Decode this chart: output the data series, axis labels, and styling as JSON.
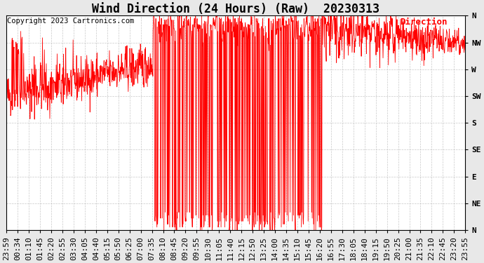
{
  "title": "Wind Direction (24 Hours) (Raw)  20230313",
  "copyright": "Copyright 2023 Cartronics.com",
  "legend_label": "Direction",
  "legend_color": "#ff0000",
  "line_color": "#ff0000",
  "bg_color": "#e8e8e8",
  "plot_bg_color": "#ffffff",
  "grid_color": "#bbbbbb",
  "ytick_labels": [
    "N",
    "NW",
    "W",
    "SW",
    "S",
    "SE",
    "E",
    "NE",
    "N"
  ],
  "ytick_values": [
    360,
    315,
    270,
    225,
    180,
    135,
    90,
    45,
    0
  ],
  "ylim": [
    0,
    360
  ],
  "title_fontsize": 12,
  "copyright_fontsize": 7.5,
  "tick_label_fontsize": 8,
  "n_points": 1440,
  "xtick_labels": [
    "23:59",
    "00:34",
    "01:10",
    "01:45",
    "02:20",
    "02:55",
    "03:30",
    "04:05",
    "04:40",
    "05:15",
    "05:50",
    "06:25",
    "07:00",
    "07:35",
    "08:10",
    "08:45",
    "09:20",
    "09:55",
    "10:30",
    "11:05",
    "11:40",
    "12:15",
    "12:50",
    "13:25",
    "14:00",
    "14:35",
    "15:10",
    "15:45",
    "16:20",
    "16:55",
    "17:30",
    "18:05",
    "18:40",
    "19:15",
    "19:50",
    "20:25",
    "21:00",
    "21:35",
    "22:10",
    "22:45",
    "23:20",
    "23:55"
  ]
}
